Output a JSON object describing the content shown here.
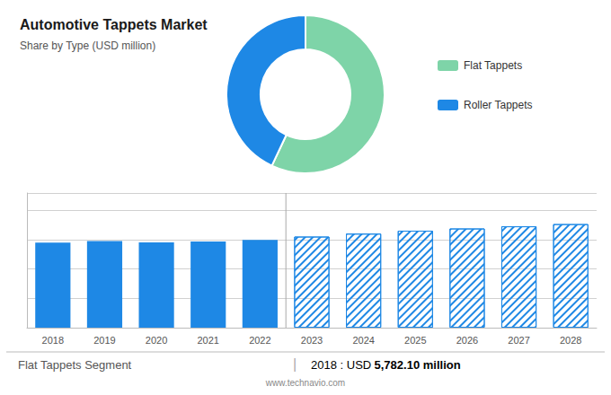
{
  "chart_data": [
    {
      "type": "pie",
      "title": "Automotive Tappets Market",
      "subtitle": "Share by Type (USD million)",
      "categories": [
        "Flat Tappets",
        "Roller Tappets"
      ],
      "values": [
        57,
        43
      ],
      "colors": [
        "#7ed4a8",
        "#1e88e5"
      ],
      "legend": "right"
    },
    {
      "type": "bar",
      "categories": [
        "2018",
        "2019",
        "2020",
        "2021",
        "2022",
        "2023",
        "2024",
        "2025",
        "2026",
        "2027",
        "2028"
      ],
      "series": [
        {
          "color": "#1e88e5",
          "values": [
            5782,
            5900,
            5810,
            5870,
            5980,
            null,
            null,
            null,
            null,
            null,
            null
          ]
        },
        {
          "color": "#1e88e5",
          "marker": "hatched",
          "values": [
            null,
            null,
            null,
            null,
            null,
            6200,
            6400,
            6600,
            6750,
            6900,
            7050
          ]
        }
      ],
      "ylim": [
        0,
        9165
      ],
      "yticks": [
        0,
        2000,
        4000,
        6000,
        8000
      ],
      "grid": true,
      "tick_labels": "x",
      "annotations": [
        "Flat Tappets Segment",
        "|",
        "2018 : USD",
        "5,782.10 million",
        "www.technavio.com"
      ]
    }
  ]
}
